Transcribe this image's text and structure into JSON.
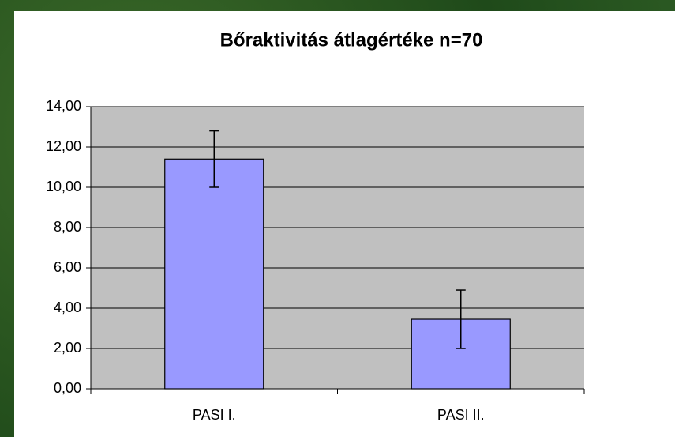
{
  "chart_data": {
    "type": "bar",
    "title": "Bőraktivitás átlagértéke n=70",
    "categories": [
      "PASI I.",
      "PASI II."
    ],
    "values": [
      11.4,
      3.45
    ],
    "errors": [
      1.4,
      1.45
    ],
    "color": "#9999ff",
    "ylim": [
      0,
      14
    ],
    "yticks": [
      {
        "value": 0,
        "label": "0,00"
      },
      {
        "value": 2,
        "label": "2,00"
      },
      {
        "value": 4,
        "label": "4,00"
      },
      {
        "value": 6,
        "label": "6,00"
      },
      {
        "value": 8,
        "label": "8,00"
      },
      {
        "value": 10,
        "label": "10,00"
      },
      {
        "value": 12,
        "label": "12,00"
      },
      {
        "value": 14,
        "label": "14,00"
      }
    ],
    "grid": true
  }
}
